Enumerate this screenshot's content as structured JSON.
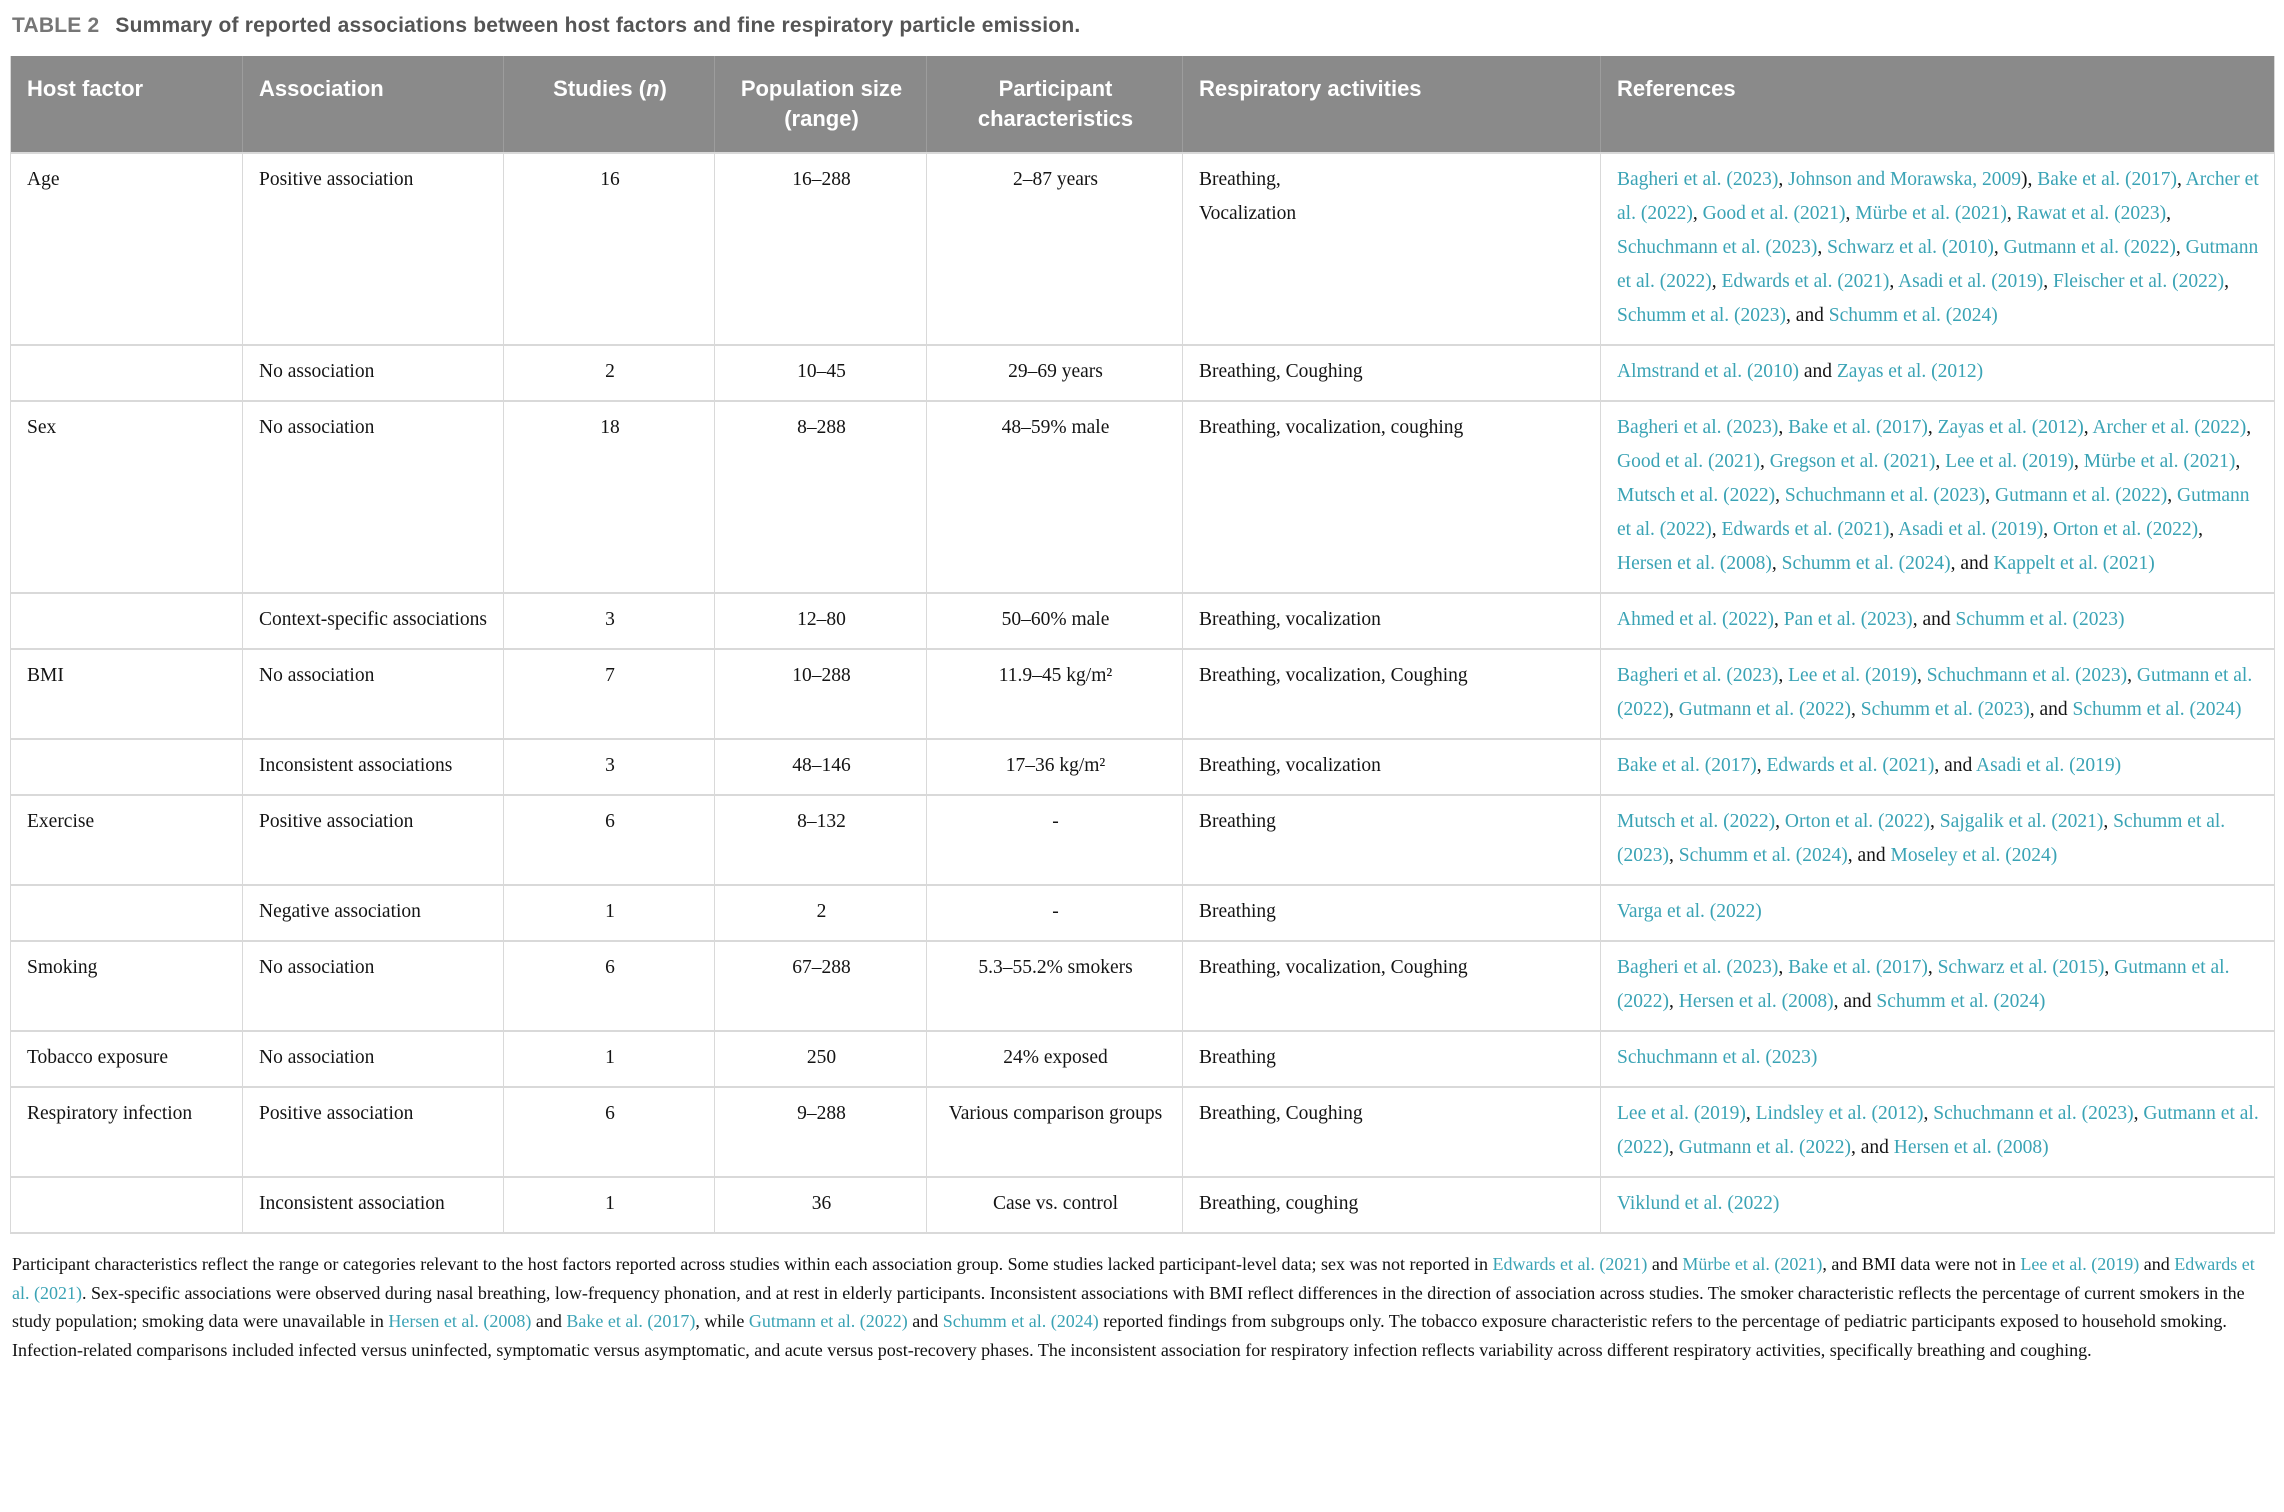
{
  "colors": {
    "link_teal": "#3aa3b5",
    "header_bg": "#8a8a8a",
    "header_text": "#ffffff",
    "caption_label_gray": "#767676",
    "row_border": "#d9d9d9"
  },
  "title": {
    "label": "TABLE 2",
    "text": "Summary of reported associations between host factors and fine respiratory particle emission."
  },
  "table": {
    "headers": [
      [
        {
          "text": "Host factor"
        }
      ],
      [
        {
          "text": "Association"
        }
      ],
      [
        {
          "text": "Studies ("
        },
        {
          "text": "n",
          "italic": true
        },
        {
          "text": ")"
        }
      ],
      [
        {
          "text": "Population size (range)"
        }
      ],
      [
        {
          "text": "Participant characteristics"
        }
      ],
      [
        {
          "text": "Respiratory activities"
        }
      ],
      [
        {
          "text": "References"
        }
      ]
    ],
    "rows": [
      {
        "host": "Age",
        "association": "Positive association",
        "studies": "16",
        "population": "16–288",
        "participants": "2–87 years",
        "activities": "Breathing,\nVocalization",
        "references": [
          {
            "text": "Bagheri et al. (2023)",
            "link": true
          },
          {
            "text": ", "
          },
          {
            "text": "Johnson and Morawska, 2009",
            "link": true
          },
          {
            "text": "), "
          },
          {
            "text": "Bake et al. (2017)",
            "link": true
          },
          {
            "text": ", "
          },
          {
            "text": "Archer et al. (2022)",
            "link": true
          },
          {
            "text": ", "
          },
          {
            "text": "Good et al. (2021)",
            "link": true
          },
          {
            "text": ", "
          },
          {
            "text": "Mürbe et al. (2021)",
            "link": true
          },
          {
            "text": ", "
          },
          {
            "text": "Rawat et al. (2023)",
            "link": true
          },
          {
            "text": ", "
          },
          {
            "text": "Schuchmann et al. (2023)",
            "link": true
          },
          {
            "text": ", "
          },
          {
            "text": "Schwarz et al. (2010)",
            "link": true
          },
          {
            "text": ", "
          },
          {
            "text": "Gutmann et al. (2022)",
            "link": true
          },
          {
            "text": ", "
          },
          {
            "text": "Gutmann et al. (2022)",
            "link": true
          },
          {
            "text": ", "
          },
          {
            "text": "Edwards et al. (2021)",
            "link": true
          },
          {
            "text": ", "
          },
          {
            "text": "Asadi et al. (2019)",
            "link": true
          },
          {
            "text": ", "
          },
          {
            "text": "Fleischer et al. (2022)",
            "link": true
          },
          {
            "text": ", "
          },
          {
            "text": "Schumm et al. (2023)",
            "link": true
          },
          {
            "text": ", and "
          },
          {
            "text": "Schumm et al. (2024)",
            "link": true
          }
        ]
      },
      {
        "host": "",
        "association": "No association",
        "studies": "2",
        "population": "10–45",
        "participants": "29–69 years",
        "activities": "Breathing, Coughing",
        "references": [
          {
            "text": "Almstrand et al. (2010)",
            "link": true
          },
          {
            "text": " and "
          },
          {
            "text": "Zayas et al. (2012)",
            "link": true
          }
        ]
      },
      {
        "host": "Sex",
        "association": "No association",
        "studies": "18",
        "population": "8–288",
        "participants": "48–59% male",
        "activities": "Breathing, vocalization, coughing",
        "references": [
          {
            "text": "Bagheri et al. (2023)",
            "link": true
          },
          {
            "text": ", "
          },
          {
            "text": "Bake et al. (2017)",
            "link": true
          },
          {
            "text": ", "
          },
          {
            "text": "Zayas et al. (2012)",
            "link": true
          },
          {
            "text": ", "
          },
          {
            "text": "Archer et al. (2022)",
            "link": true
          },
          {
            "text": ", "
          },
          {
            "text": "Good et al. (2021)",
            "link": true
          },
          {
            "text": ", "
          },
          {
            "text": "Gregson et al. (2021)",
            "link": true
          },
          {
            "text": ", "
          },
          {
            "text": "Lee et al. (2019)",
            "link": true
          },
          {
            "text": ", "
          },
          {
            "text": "Mürbe et al. (2021)",
            "link": true
          },
          {
            "text": ", "
          },
          {
            "text": "Mutsch et al. (2022)",
            "link": true
          },
          {
            "text": ", "
          },
          {
            "text": "Schuchmann et al. (2023)",
            "link": true
          },
          {
            "text": ", "
          },
          {
            "text": "Gutmann et al. (2022)",
            "link": true
          },
          {
            "text": ", "
          },
          {
            "text": "Gutmann et al. (2022)",
            "link": true
          },
          {
            "text": ", "
          },
          {
            "text": "Edwards et al. (2021)",
            "link": true
          },
          {
            "text": ", "
          },
          {
            "text": "Asadi et al. (2019)",
            "link": true
          },
          {
            "text": ", "
          },
          {
            "text": "Orton et al. (2022)",
            "link": true
          },
          {
            "text": ", "
          },
          {
            "text": "Hersen et al. (2008)",
            "link": true
          },
          {
            "text": ", "
          },
          {
            "text": "Schumm et al. (2024)",
            "link": true
          },
          {
            "text": ", and "
          },
          {
            "text": "Kappelt et al. (2021)",
            "link": true
          }
        ]
      },
      {
        "host": "",
        "association": "Context-specific associations",
        "studies": "3",
        "population": "12–80",
        "participants": "50–60% male",
        "activities": "Breathing, vocalization",
        "references": [
          {
            "text": "Ahmed et al. (2022)",
            "link": true
          },
          {
            "text": ", "
          },
          {
            "text": "Pan et al. (2023)",
            "link": true
          },
          {
            "text": ", and "
          },
          {
            "text": "Schumm et al. (2023)",
            "link": true
          }
        ]
      },
      {
        "host": "BMI",
        "association": "No association",
        "studies": "7",
        "population": "10–288",
        "participants": "11.9–45 kg/m²",
        "activities": "Breathing, vocalization, Coughing",
        "references": [
          {
            "text": "Bagheri et al. (2023)",
            "link": true
          },
          {
            "text": ", "
          },
          {
            "text": "Lee et al. (2019)",
            "link": true
          },
          {
            "text": ", "
          },
          {
            "text": "Schuchmann et al. (2023)",
            "link": true
          },
          {
            "text": ", "
          },
          {
            "text": "Gutmann et al. (2022)",
            "link": true
          },
          {
            "text": ", "
          },
          {
            "text": "Gutmann et al. (2022)",
            "link": true
          },
          {
            "text": ", "
          },
          {
            "text": "Schumm et al. (2023)",
            "link": true
          },
          {
            "text": ", and "
          },
          {
            "text": "Schumm et al. (2024)",
            "link": true
          }
        ]
      },
      {
        "host": "",
        "association": "Inconsistent associations",
        "studies": "3",
        "population": "48–146",
        "participants": "17–36 kg/m²",
        "activities": "Breathing, vocalization",
        "references": [
          {
            "text": "Bake et al. (2017)",
            "link": true
          },
          {
            "text": ", "
          },
          {
            "text": "Edwards et al. (2021)",
            "link": true
          },
          {
            "text": ", and "
          },
          {
            "text": "Asadi et al. (2019)",
            "link": true
          }
        ]
      },
      {
        "host": "Exercise",
        "association": "Positive association",
        "studies": "6",
        "population": "8–132",
        "participants": "-",
        "activities": "Breathing",
        "references": [
          {
            "text": "Mutsch et al. (2022)",
            "link": true
          },
          {
            "text": ", "
          },
          {
            "text": "Orton et al. (2022)",
            "link": true
          },
          {
            "text": ", "
          },
          {
            "text": "Sajgalik et al. (2021)",
            "link": true
          },
          {
            "text": ", "
          },
          {
            "text": "Schumm et al. (2023)",
            "link": true
          },
          {
            "text": ", "
          },
          {
            "text": "Schumm et al. (2024)",
            "link": true
          },
          {
            "text": ", and "
          },
          {
            "text": "Moseley et al. (2024)",
            "link": true
          }
        ]
      },
      {
        "host": "",
        "association": "Negative association",
        "studies": "1",
        "population": "2",
        "participants": "-",
        "activities": "Breathing",
        "references": [
          {
            "text": "Varga et al. (2022)",
            "link": true
          }
        ]
      },
      {
        "host": "Smoking",
        "association": "No association",
        "studies": "6",
        "population": "67–288",
        "participants": "5.3–55.2% smokers",
        "activities": "Breathing, vocalization, Coughing",
        "references": [
          {
            "text": "Bagheri et al. (2023)",
            "link": true
          },
          {
            "text": ", "
          },
          {
            "text": "Bake et al. (2017)",
            "link": true
          },
          {
            "text": ", "
          },
          {
            "text": "Schwarz et al. (2015)",
            "link": true
          },
          {
            "text": ", "
          },
          {
            "text": "Gutmann et al. (2022)",
            "link": true
          },
          {
            "text": ", "
          },
          {
            "text": "Hersen et al. (2008)",
            "link": true
          },
          {
            "text": ", and "
          },
          {
            "text": "Schumm et al. (2024)",
            "link": true
          }
        ]
      },
      {
        "host": "Tobacco exposure",
        "association": "No association",
        "studies": "1",
        "population": "250",
        "participants": "24% exposed",
        "activities": "Breathing",
        "references": [
          {
            "text": "Schuchmann et al. (2023)",
            "link": true
          }
        ]
      },
      {
        "host": "Respiratory infection",
        "association": "Positive association",
        "studies": "6",
        "population": "9–288",
        "participants": "Various comparison groups",
        "activities": "Breathing, Coughing",
        "references": [
          {
            "text": "Lee et al. (2019)",
            "link": true
          },
          {
            "text": ", "
          },
          {
            "text": "Lindsley et al. (2012)",
            "link": true
          },
          {
            "text": ", "
          },
          {
            "text": "Schuchmann et al. (2023)",
            "link": true
          },
          {
            "text": ", "
          },
          {
            "text": "Gutmann et al. (2022)",
            "link": true
          },
          {
            "text": ", "
          },
          {
            "text": "Gutmann et al. (2022)",
            "link": true
          },
          {
            "text": ", and "
          },
          {
            "text": "Hersen et al. (2008)",
            "link": true
          }
        ]
      },
      {
        "host": "",
        "association": "Inconsistent association",
        "studies": "1",
        "population": "36",
        "participants": "Case vs. control",
        "activities": "Breathing, coughing",
        "references": [
          {
            "text": "Viklund et al. (2022)",
            "link": true
          }
        ]
      }
    ]
  },
  "footnote": {
    "segments": [
      {
        "text": "Participant characteristics reflect the range or categories relevant to the host factors reported across studies within each association group. Some studies lacked participant-level data; sex was not reported in "
      },
      {
        "text": "Edwards et al. (2021)",
        "link": true
      },
      {
        "text": " and "
      },
      {
        "text": "Mürbe et al. (2021)",
        "link": true
      },
      {
        "text": ", and BMI data were not in "
      },
      {
        "text": "Lee et al. (2019)",
        "link": true
      },
      {
        "text": " and "
      },
      {
        "text": "Edwards et al. (2021)",
        "link": true
      },
      {
        "text": ". Sex-specific associations were observed during nasal breathing, low-frequency phonation, and at rest in elderly participants. Inconsistent associations with BMI reflect differences in the direction of association across studies. The smoker characteristic reflects the percentage of current smokers in the study population; smoking data were unavailable in "
      },
      {
        "text": "Hersen et al. (2008)",
        "link": true
      },
      {
        "text": " and "
      },
      {
        "text": "Bake et al. (2017)",
        "link": true
      },
      {
        "text": ", while "
      },
      {
        "text": "Gutmann et al. (2022)",
        "link": true
      },
      {
        "text": " and "
      },
      {
        "text": "Schumm et al. (2024)",
        "link": true
      },
      {
        "text": " reported findings from subgroups only. The tobacco exposure characteristic refers to the percentage of pediatric participants exposed to household smoking. Infection-related comparisons included infected versus uninfected, symptomatic versus asymptomatic, and acute versus post-recovery phases. The inconsistent association for respiratory infection reflects variability across different respiratory activities, specifically breathing and coughing."
      }
    ]
  }
}
